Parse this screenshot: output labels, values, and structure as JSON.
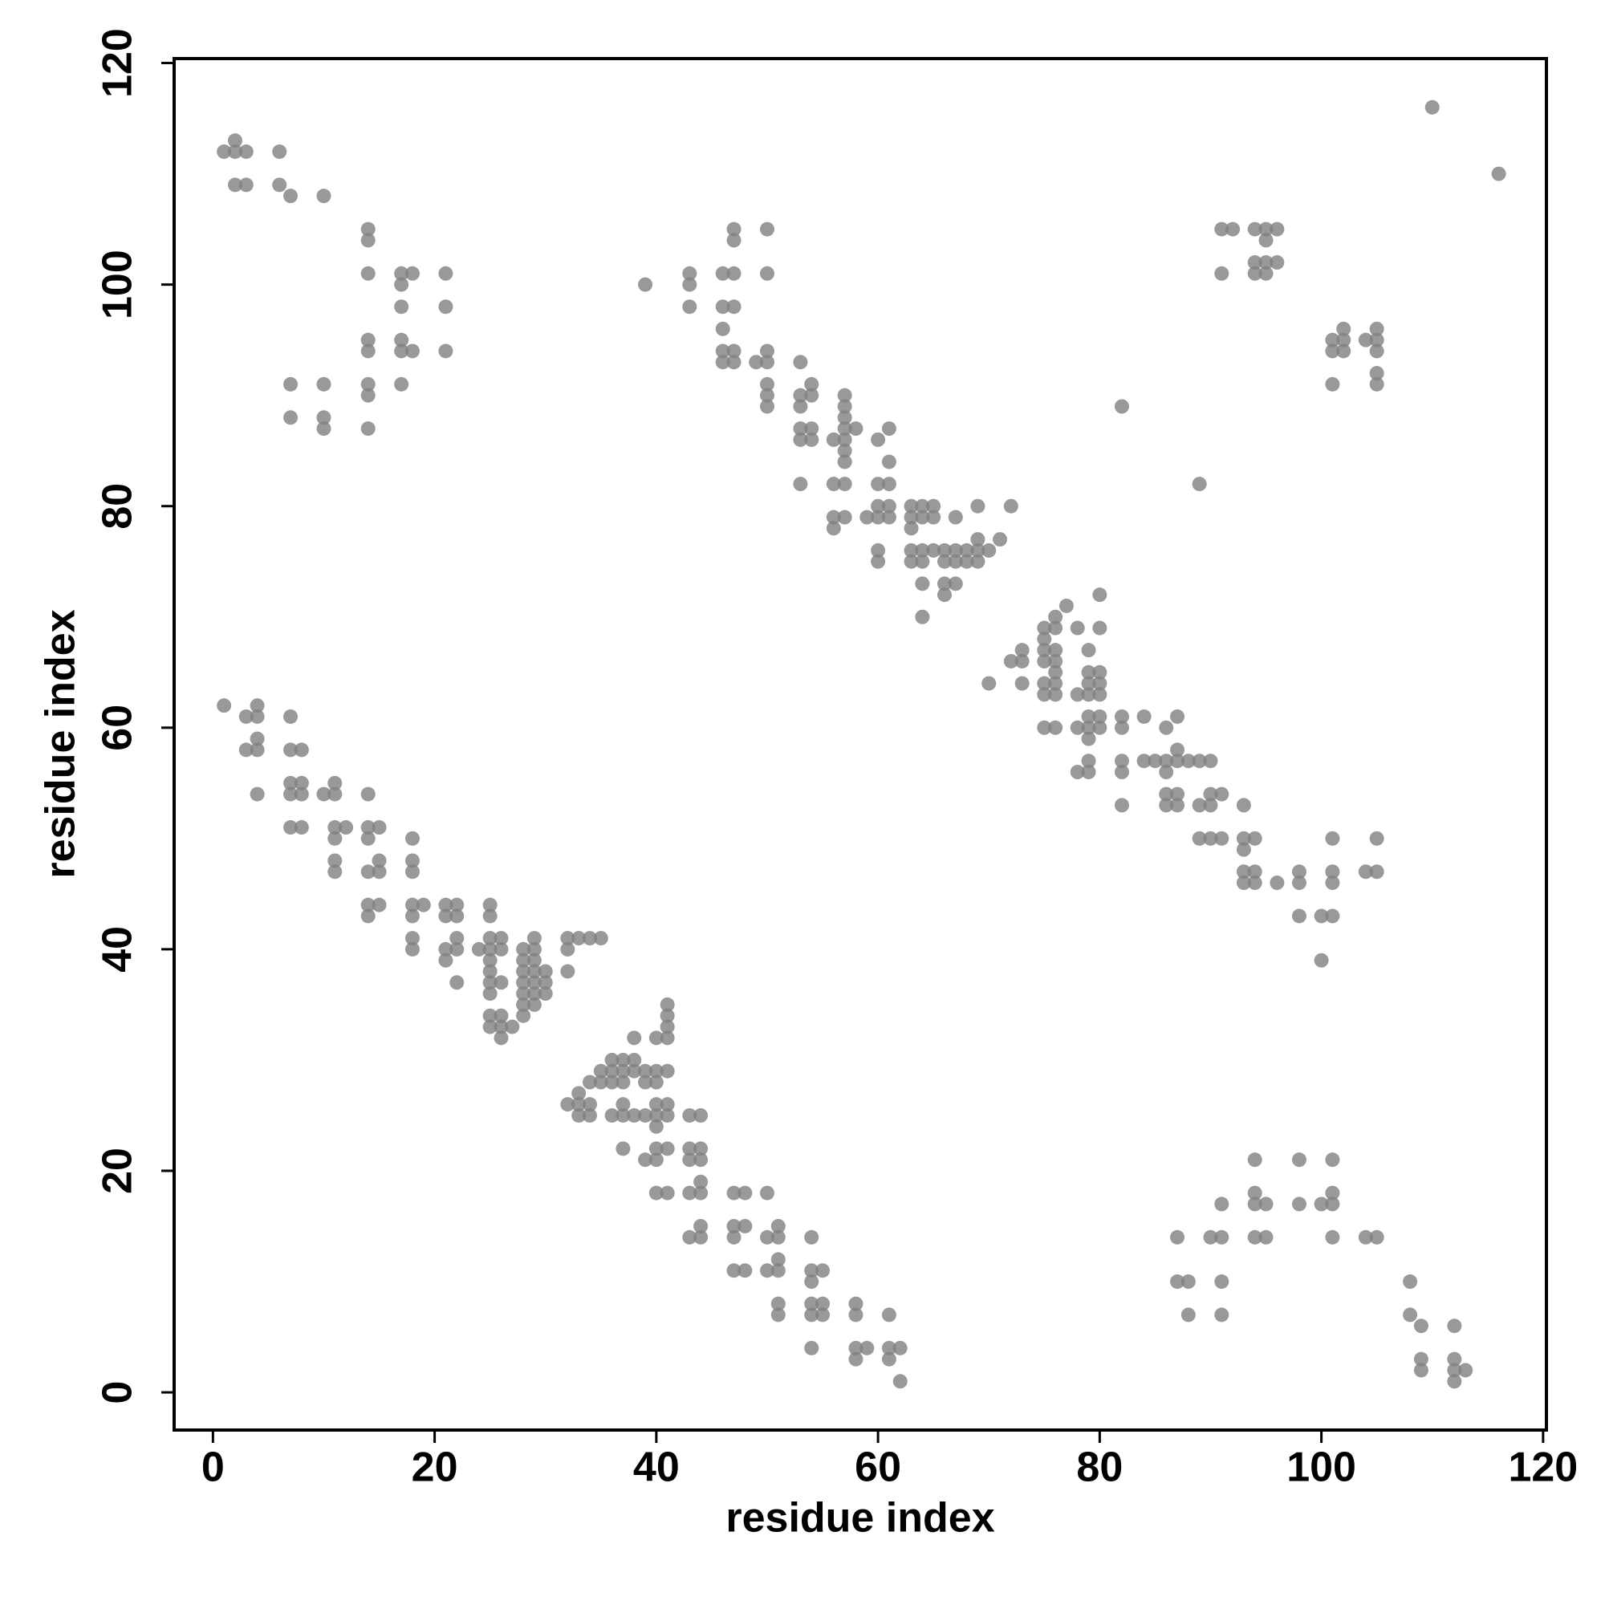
{
  "chart_data": {
    "type": "scatter",
    "x_label": "residue index",
    "y_label": "residue index",
    "color": "#7f7f7f",
    "xlim": [
      -3.5,
      120.3
    ],
    "ylim": [
      -3.4,
      120.4
    ],
    "xticks": [
      0,
      20,
      40,
      60,
      80,
      100,
      120
    ],
    "yticks": [
      0,
      20,
      40,
      60,
      80,
      100,
      120
    ],
    "x": [
      1,
      2,
      2,
      3,
      2,
      3,
      6,
      6,
      7,
      10,
      14,
      14,
      14,
      17,
      18,
      17,
      17,
      21,
      21,
      14,
      14,
      17,
      17,
      18,
      21,
      7,
      10,
      14,
      14,
      17,
      7,
      10,
      10,
      14,
      39,
      43,
      43,
      43,
      46,
      47,
      47,
      47,
      50,
      50,
      46,
      47,
      46,
      46,
      46,
      47,
      47,
      49,
      50,
      50,
      50,
      50,
      50,
      53,
      53,
      53,
      54,
      54,
      53,
      53,
      54,
      54,
      53,
      56,
      57,
      57,
      57,
      57,
      57,
      57,
      58,
      57,
      56,
      57,
      56,
      56,
      57,
      60,
      61,
      61,
      60,
      61,
      60,
      61,
      60,
      61,
      59,
      60,
      60,
      63,
      64,
      65,
      63,
      64,
      65,
      63,
      63,
      64,
      63,
      64,
      65,
      66,
      66,
      67,
      67,
      68,
      68,
      69,
      69,
      70,
      69,
      71,
      67,
      69,
      72,
      64,
      66,
      67,
      66,
      64,
      70,
      72,
      73,
      73,
      73,
      75,
      75,
      76,
      76,
      77,
      75,
      76,
      75,
      76,
      76,
      75,
      76,
      75,
      76,
      78,
      75,
      76,
      78,
      78,
      79,
      79,
      80,
      79,
      80,
      79,
      80,
      79,
      80,
      79,
      80,
      79,
      78,
      79,
      79,
      80,
      80,
      82,
      82,
      82,
      82,
      82,
      84,
      84,
      85,
      86,
      86,
      86,
      86,
      87,
      87,
      87,
      86,
      87,
      87,
      88,
      89,
      89,
      90,
      90,
      90,
      91,
      89,
      90,
      91,
      93,
      93,
      93,
      94,
      93,
      94,
      93,
      94,
      96,
      98,
      98,
      98,
      100,
      101,
      101,
      101,
      101,
      100,
      104,
      105,
      105,
      110,
      116,
      82,
      89,
      91,
      92,
      91,
      94,
      95,
      96,
      95,
      94,
      95,
      96,
      94,
      95,
      101,
      102,
      101,
      102,
      102,
      104,
      105,
      105,
      105,
      105,
      105,
      101,
      1,
      3,
      4,
      4,
      3,
      4,
      4,
      4,
      7,
      7,
      8,
      7,
      8,
      7,
      8,
      10,
      11,
      11,
      7,
      8,
      11,
      12,
      11,
      14,
      14,
      15,
      14,
      11,
      11,
      14,
      15,
      15,
      18,
      18,
      18,
      14,
      14,
      15,
      18,
      19,
      18,
      18,
      18,
      21,
      22,
      21,
      22,
      21,
      22,
      22,
      21,
      22,
      24,
      25,
      25,
      25,
      26,
      25,
      26,
      25,
      25,
      25,
      26,
      25,
      25,
      26,
      25,
      26,
      27,
      26,
      28,
      29,
      29,
      28,
      29,
      28,
      29,
      30,
      28,
      29,
      30,
      28,
      29,
      30,
      28,
      29,
      28,
      32,
      33,
      34,
      35,
      32,
      32,
      32,
      33,
      33,
      34,
      33,
      34,
      34,
      35,
      35,
      36,
      36,
      37,
      37,
      38,
      38,
      36,
      37,
      39,
      40,
      41,
      39,
      40,
      38,
      41,
      41,
      41,
      41,
      40,
      36,
      37,
      37,
      38,
      39,
      40,
      41,
      40,
      41,
      40,
      37,
      39,
      40,
      41,
      40,
      43,
      44,
      43,
      44,
      43,
      44,
      44,
      43,
      44,
      40,
      41,
      47,
      48,
      50,
      43,
      44,
      44,
      47,
      48,
      47,
      50,
      51,
      51,
      47,
      48,
      50,
      51,
      51,
      51,
      51,
      54,
      54,
      55,
      54,
      54,
      55,
      54,
      55,
      54,
      58,
      58,
      58,
      59,
      58,
      61,
      61,
      62,
      61,
      62,
      87,
      87,
      88,
      88,
      90,
      91,
      91,
      91,
      91,
      94,
      94,
      94,
      95,
      94,
      95,
      98,
      98,
      100,
      101,
      101,
      101,
      101,
      104,
      105,
      108,
      108,
      109,
      109,
      109,
      112,
      112,
      112,
      112,
      113
    ],
    "values": [
      112,
      113,
      112,
      112,
      109,
      109,
      112,
      109,
      108,
      108,
      105,
      104,
      101,
      101,
      101,
      100,
      98,
      101,
      98,
      95,
      94,
      95,
      94,
      94,
      94,
      91,
      91,
      91,
      90,
      91,
      88,
      88,
      87,
      87,
      100,
      101,
      100,
      98,
      101,
      101,
      105,
      104,
      105,
      101,
      98,
      98,
      96,
      94,
      93,
      94,
      93,
      93,
      94,
      93,
      91,
      90,
      89,
      93,
      90,
      89,
      91,
      90,
      87,
      86,
      87,
      86,
      82,
      86,
      86,
      90,
      89,
      88,
      87,
      85,
      87,
      84,
      82,
      82,
      79,
      78,
      79,
      86,
      87,
      84,
      82,
      82,
      80,
      80,
      79,
      79,
      79,
      76,
      75,
      80,
      80,
      80,
      79,
      79,
      79,
      78,
      76,
      76,
      75,
      75,
      76,
      76,
      75,
      76,
      75,
      76,
      75,
      76,
      75,
      76,
      77,
      77,
      79,
      80,
      80,
      73,
      73,
      73,
      72,
      70,
      64,
      66,
      67,
      66,
      64,
      69,
      68,
      69,
      70,
      71,
      67,
      67,
      66,
      66,
      65,
      64,
      64,
      63,
      63,
      69,
      60,
      60,
      63,
      60,
      67,
      65,
      65,
      64,
      64,
      63,
      63,
      61,
      61,
      60,
      60,
      59,
      56,
      57,
      56,
      72,
      69,
      61,
      60,
      57,
      56,
      53,
      61,
      57,
      57,
      57,
      56,
      54,
      53,
      58,
      57,
      61,
      60,
      54,
      53,
      57,
      57,
      53,
      57,
      54,
      53,
      54,
      50,
      50,
      50,
      53,
      50,
      49,
      50,
      47,
      47,
      46,
      46,
      46,
      47,
      46,
      43,
      43,
      43,
      47,
      46,
      50,
      39,
      47,
      47,
      50,
      116,
      110,
      89,
      82,
      105,
      105,
      101,
      105,
      105,
      105,
      104,
      102,
      102,
      102,
      101,
      101,
      95,
      95,
      94,
      94,
      96,
      95,
      95,
      96,
      94,
      92,
      91,
      91,
      62,
      61,
      62,
      61,
      58,
      58,
      59,
      54,
      61,
      58,
      58,
      55,
      55,
      54,
      54,
      54,
      55,
      54,
      51,
      51,
      51,
      51,
      50,
      54,
      51,
      51,
      50,
      48,
      47,
      47,
      47,
      48,
      50,
      48,
      47,
      44,
      43,
      44,
      44,
      44,
      43,
      41,
      40,
      44,
      44,
      43,
      43,
      40,
      40,
      41,
      39,
      37,
      40,
      44,
      43,
      41,
      41,
      40,
      40,
      39,
      38,
      37,
      37,
      36,
      34,
      34,
      33,
      33,
      33,
      32,
      40,
      40,
      41,
      39,
      39,
      38,
      38,
      38,
      37,
      37,
      37,
      36,
      36,
      36,
      35,
      35,
      34,
      41,
      41,
      41,
      41,
      40,
      38,
      26,
      27,
      26,
      26,
      25,
      25,
      28,
      28,
      29,
      30,
      29,
      30,
      29,
      30,
      29,
      28,
      28,
      29,
      29,
      29,
      28,
      28,
      32,
      35,
      34,
      33,
      32,
      32,
      25,
      26,
      25,
      25,
      25,
      26,
      26,
      25,
      25,
      24,
      22,
      21,
      22,
      22,
      21,
      25,
      25,
      22,
      22,
      21,
      21,
      19,
      18,
      18,
      18,
      18,
      18,
      18,
      18,
      14,
      14,
      15,
      15,
      15,
      14,
      14,
      14,
      15,
      11,
      11,
      11,
      11,
      12,
      8,
      7,
      14,
      11,
      11,
      10,
      8,
      8,
      7,
      7,
      4,
      8,
      7,
      4,
      4,
      3,
      7,
      4,
      4,
      3,
      1,
      14,
      10,
      10,
      7,
      14,
      14,
      17,
      10,
      7,
      21,
      18,
      17,
      17,
      14,
      14,
      21,
      17,
      17,
      17,
      18,
      21,
      14,
      14,
      14,
      10,
      7,
      6,
      3,
      2,
      6,
      3,
      2,
      1,
      2
    ]
  }
}
